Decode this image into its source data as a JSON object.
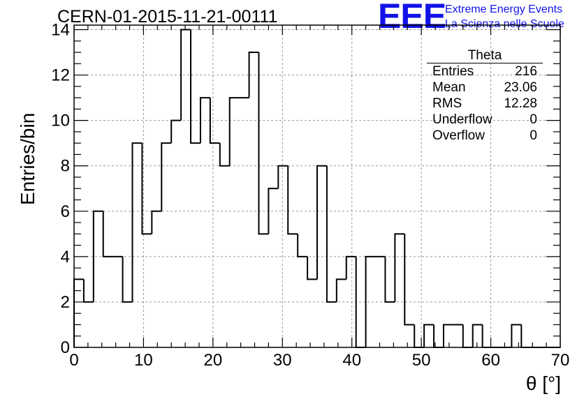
{
  "title": "CERN-01-2015-11-21-00111",
  "logo": {
    "text": "EEE",
    "line1": "Extreme Energy Events",
    "line2": "La Scienza nelle Scuole",
    "color": "#1212e8"
  },
  "stats": {
    "name": "Theta",
    "rows": [
      {
        "label": "Entries",
        "value": "216"
      },
      {
        "label": "Mean",
        "value": "23.06"
      },
      {
        "label": "RMS",
        "value": "12.28"
      },
      {
        "label": "Underflow",
        "value": "0"
      },
      {
        "label": "Overflow",
        "value": "0"
      }
    ]
  },
  "chart_data": {
    "type": "bar",
    "title": "CERN-01-2015-11-21-00111",
    "xlabel": "θ [°]",
    "ylabel": "Entries/bin",
    "xlim": [
      0,
      70
    ],
    "ylim": [
      0,
      14.2
    ],
    "grid": true,
    "bin_width": 1.4,
    "x_ticks": [
      0,
      10,
      20,
      30,
      40,
      50,
      60,
      70
    ],
    "y_ticks": [
      0,
      2,
      4,
      6,
      8,
      10,
      12,
      14
    ],
    "values": [
      3,
      2,
      6,
      4,
      4,
      2,
      9,
      5,
      6,
      9,
      10,
      14,
      9,
      11,
      9,
      8,
      11,
      11,
      13,
      5,
      7,
      8,
      5,
      4,
      3,
      8,
      2,
      3,
      4,
      0,
      4,
      4,
      2,
      5,
      1,
      0,
      1,
      0,
      1,
      1,
      0,
      1,
      0,
      0,
      0,
      1,
      0,
      0,
      0,
      0
    ]
  }
}
